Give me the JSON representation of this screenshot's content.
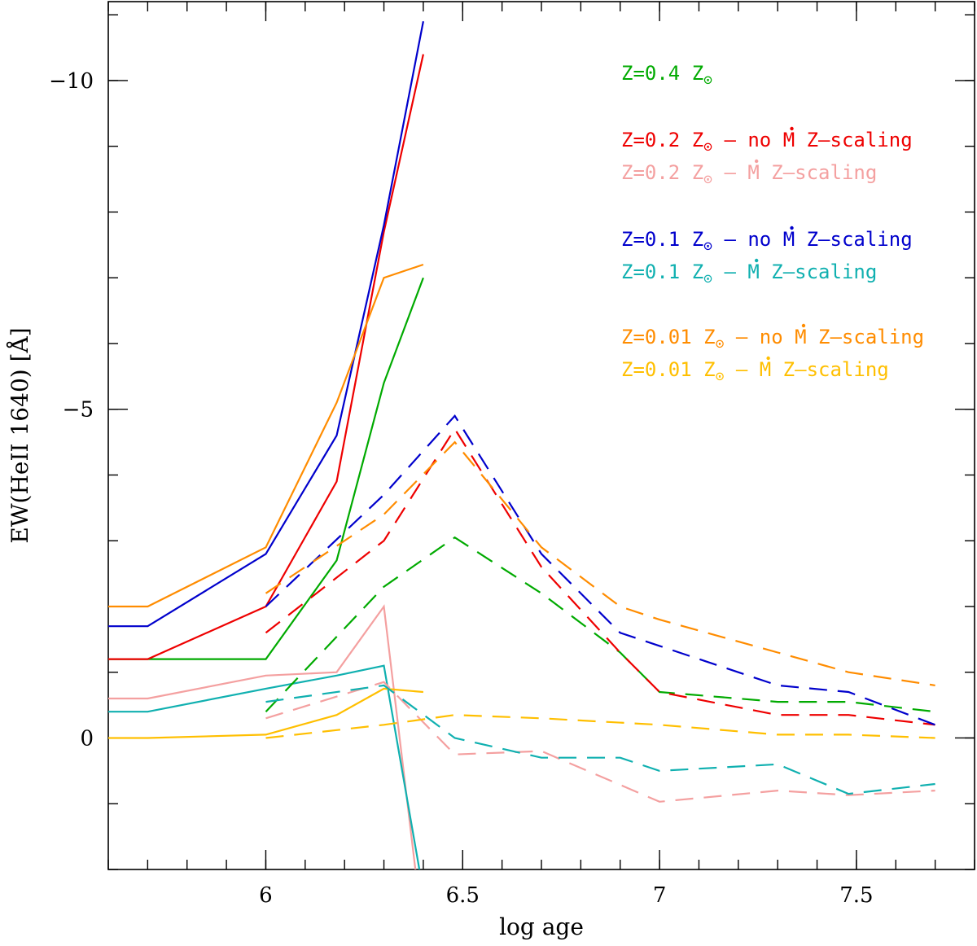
{
  "chart_data": {
    "type": "line",
    "title": "",
    "xlabel": "log age",
    "ylabel": "EW(HeII 1640) [Å]",
    "xlim": [
      5.6,
      7.8
    ],
    "ylim": [
      2.0,
      -11.2
    ],
    "x_major_ticks": [
      6,
      6.5,
      7,
      7.5
    ],
    "x_minor_step": 0.1,
    "y_major_ticks": [
      0,
      -5,
      -10
    ],
    "y_minor_step": 1,
    "x_tick_labels": [
      "6",
      "6.5",
      "7",
      "7.5"
    ],
    "y_tick_labels": [
      "0",
      "−5",
      "−10"
    ],
    "grid": false,
    "legend_placement": "top-right",
    "legend": [
      {
        "prefix": "Z=0.4 Z",
        "suffix": "",
        "color": "#00aa00"
      },
      {
        "prefix": "Z=0.2 Z",
        "suffix": " – no M Z–scaling",
        "color": "#ee0000"
      },
      {
        "prefix": "Z=0.2 Z",
        "suffix": " – M Z–scaling",
        "color": "#f4a0a0"
      },
      {
        "prefix": "Z=0.1 Z",
        "suffix": " – no M Z–scaling",
        "color": "#0000cc"
      },
      {
        "prefix": "Z=0.1 Z",
        "suffix": " – M Z–scaling",
        "color": "#10b0b0"
      },
      {
        "prefix": "Z=0.01 Z",
        "suffix": " – no M Z–scaling",
        "color": "#ff8c00"
      },
      {
        "prefix": "Z=0.01 Z",
        "suffix": " – M Z–scaling",
        "color": "#ffbf00"
      }
    ],
    "series": [
      {
        "name": "Z=0.4 solid",
        "color": "#00aa00",
        "dash": false,
        "x": [
          5.6,
          6.0,
          6.18,
          6.3,
          6.4
        ],
        "y": [
          -1.2,
          -1.2,
          -2.7,
          -5.4,
          -7.0
        ]
      },
      {
        "name": "Z=0.2 no Mdot solid",
        "color": "#ee0000",
        "dash": false,
        "x": [
          5.6,
          5.7,
          6.0,
          6.18,
          6.3,
          6.4
        ],
        "y": [
          -1.2,
          -1.2,
          -2.0,
          -3.9,
          -7.7,
          -10.4
        ]
      },
      {
        "name": "Z=0.2 Mdot solid",
        "color": "#f4a0a0",
        "dash": false,
        "x": [
          5.6,
          5.7,
          6.0,
          6.18,
          6.3,
          6.38
        ],
        "y": [
          -0.6,
          -0.6,
          -0.95,
          -1.0,
          -2.0,
          2.0
        ]
      },
      {
        "name": "Z=0.1 no Mdot solid",
        "color": "#0000cc",
        "dash": false,
        "x": [
          5.6,
          5.7,
          6.0,
          6.18,
          6.3,
          6.4
        ],
        "y": [
          -1.7,
          -1.7,
          -2.8,
          -4.6,
          -7.8,
          -10.9
        ]
      },
      {
        "name": "Z=0.1 Mdot solid",
        "color": "#10b0b0",
        "dash": false,
        "x": [
          5.6,
          5.7,
          6.0,
          6.18,
          6.3,
          6.39
        ],
        "y": [
          -0.4,
          -0.4,
          -0.75,
          -0.95,
          -1.1,
          2.0
        ]
      },
      {
        "name": "Z=0.01 no Mdot solid",
        "color": "#ff8c00",
        "dash": false,
        "x": [
          5.6,
          5.7,
          6.0,
          6.18,
          6.3,
          6.4
        ],
        "y": [
          -2.0,
          -2.0,
          -2.9,
          -5.1,
          -7.0,
          -7.2
        ]
      },
      {
        "name": "Z=0.01 Mdot solid",
        "color": "#ffbf00",
        "dash": false,
        "x": [
          5.6,
          5.7,
          6.0,
          6.18,
          6.3,
          6.4
        ],
        "y": [
          0.0,
          0.0,
          -0.05,
          -0.35,
          -0.75,
          -0.7
        ]
      },
      {
        "name": "Z=0.4 dashed",
        "color": "#00aa00",
        "dash": true,
        "x": [
          6.0,
          6.3,
          6.48,
          6.7,
          6.9,
          7.0,
          7.3,
          7.48,
          7.7
        ],
        "y": [
          -0.4,
          -2.3,
          -3.05,
          -2.2,
          -1.3,
          -0.7,
          -0.55,
          -0.55,
          -0.4
        ]
      },
      {
        "name": "Z=0.2 no Mdot dashed",
        "color": "#ee0000",
        "dash": true,
        "x": [
          6.0,
          6.3,
          6.48,
          6.7,
          6.9,
          7.0,
          7.3,
          7.48,
          7.7
        ],
        "y": [
          -1.6,
          -3.0,
          -4.7,
          -2.6,
          -1.3,
          -0.7,
          -0.35,
          -0.35,
          -0.2
        ]
      },
      {
        "name": "Z=0.2 Mdot dashed",
        "color": "#f4a0a0",
        "dash": true,
        "x": [
          6.0,
          6.3,
          6.48,
          6.7,
          7.0,
          7.3,
          7.48,
          7.7
        ],
        "y": [
          -0.3,
          -0.85,
          0.25,
          0.2,
          0.97,
          0.8,
          0.87,
          0.8
        ]
      },
      {
        "name": "Z=0.1 no Mdot dashed",
        "color": "#0000cc",
        "dash": true,
        "x": [
          6.0,
          6.3,
          6.48,
          6.7,
          6.9,
          7.0,
          7.3,
          7.48,
          7.7
        ],
        "y": [
          -2.0,
          -3.7,
          -4.9,
          -2.8,
          -1.6,
          -1.4,
          -0.8,
          -0.7,
          -0.2
        ]
      },
      {
        "name": "Z=0.1 Mdot dashed",
        "color": "#10b0b0",
        "dash": true,
        "x": [
          6.0,
          6.3,
          6.48,
          6.7,
          6.9,
          7.0,
          7.3,
          7.48,
          7.7
        ],
        "y": [
          -0.55,
          -0.8,
          0.0,
          0.3,
          0.3,
          0.5,
          0.4,
          0.85,
          0.7
        ]
      },
      {
        "name": "Z=0.01 no Mdot dashed",
        "color": "#ff8c00",
        "dash": true,
        "x": [
          6.0,
          6.3,
          6.48,
          6.7,
          6.9,
          7.0,
          7.3,
          7.48,
          7.7
        ],
        "y": [
          -2.2,
          -3.4,
          -4.5,
          -2.9,
          -2.0,
          -1.8,
          -1.3,
          -1.0,
          -0.8
        ]
      },
      {
        "name": "Z=0.01 Mdot dashed",
        "color": "#ffbf00",
        "dash": true,
        "x": [
          6.0,
          6.3,
          6.48,
          6.7,
          7.0,
          7.3,
          7.48,
          7.7
        ],
        "y": [
          0.0,
          -0.2,
          -0.35,
          -0.3,
          -0.2,
          -0.05,
          -0.05,
          0.0
        ]
      }
    ]
  }
}
